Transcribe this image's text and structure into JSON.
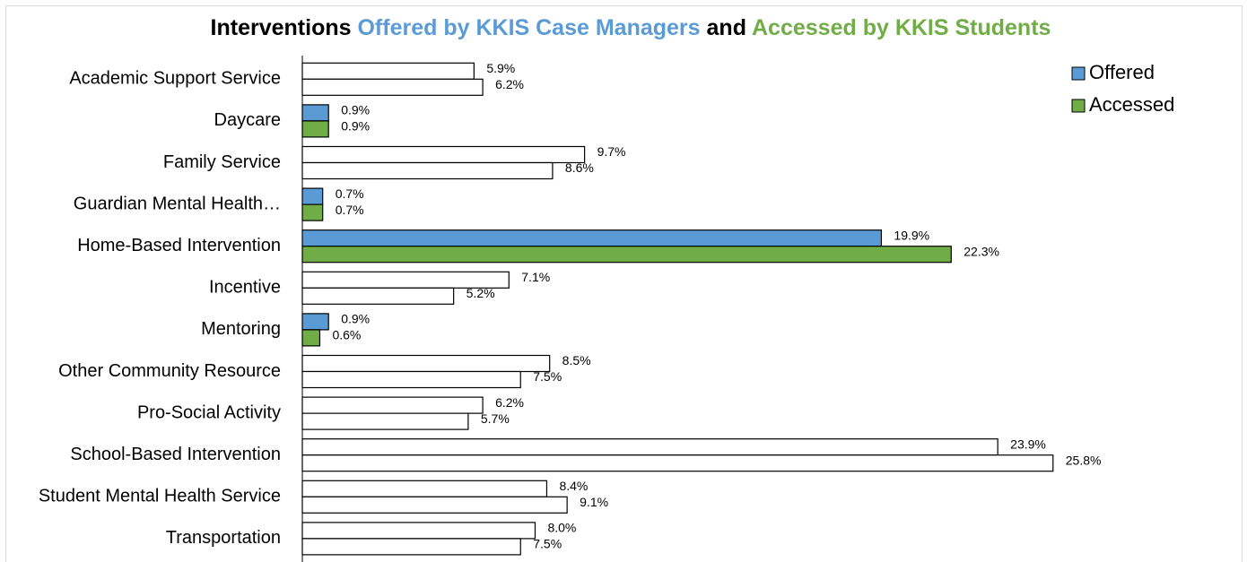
{
  "chart_data": {
    "type": "bar",
    "orientation": "horizontal",
    "title": [
      "Interventions",
      "Offered by KKIS Case Managers",
      "and",
      "Accessed by KKIS Students"
    ],
    "title_colors": [
      "#000000",
      "#5b9bd5",
      "#000000",
      "#70ad47"
    ],
    "categories": [
      "Academic Support Service",
      "Daycare",
      "Family Service",
      "Guardian Mental Health…",
      "Home-Based Intervention",
      "Incentive",
      "Mentoring",
      "Other Community Resource",
      "Pro-Social Activity",
      "School-Based Intervention",
      "Student Mental Health Service",
      "Transportation"
    ],
    "series": [
      {
        "name": "Offered",
        "color": "#5b9bd5",
        "colors": [
          "#ffffff",
          "#5b9bd5",
          "#ffffff",
          "#5b9bd5",
          "#5b9bd5",
          "#ffffff",
          "#5b9bd5",
          "#ffffff",
          "#ffffff",
          "#ffffff",
          "#ffffff",
          "#ffffff"
        ],
        "values": [
          5.9,
          0.9,
          9.7,
          0.7,
          19.9,
          7.1,
          0.9,
          8.5,
          6.2,
          23.9,
          8.4,
          8.0
        ],
        "value_labels": [
          "5.9%",
          "0.9%",
          "9.7%",
          "0.7%",
          "19.9%",
          "7.1%",
          "0.9%",
          "8.5%",
          "6.2%",
          "23.9%",
          "8.4%",
          "8.0%"
        ]
      },
      {
        "name": "Accessed",
        "color": "#70ad47",
        "colors": [
          "#ffffff",
          "#70ad47",
          "#ffffff",
          "#70ad47",
          "#70ad47",
          "#ffffff",
          "#70ad47",
          "#ffffff",
          "#ffffff",
          "#ffffff",
          "#ffffff",
          "#ffffff"
        ],
        "values": [
          6.2,
          0.9,
          8.6,
          0.7,
          22.3,
          5.2,
          0.6,
          7.5,
          5.7,
          25.8,
          9.1,
          7.5
        ],
        "value_labels": [
          "6.2%",
          "0.9%",
          "8.6%",
          "0.7%",
          "22.3%",
          "5.2%",
          "0.6%",
          "7.5%",
          "5.7%",
          "25.8%",
          "9.1%",
          "7.5%"
        ]
      }
    ],
    "xlim": [
      0,
      30
    ],
    "legend": "upper right"
  }
}
